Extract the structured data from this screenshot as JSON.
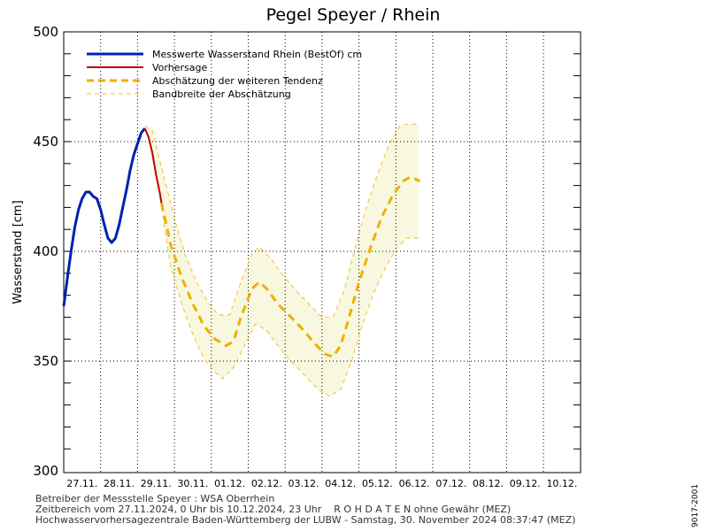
{
  "chart_data": {
    "type": "line",
    "title": "Pegel Speyer / Rhein",
    "ylabel": "Wasserstand [cm]",
    "ylim": [
      300,
      500
    ],
    "yticks": [
      300,
      350,
      400,
      450,
      500
    ],
    "x_range": [
      "27.11.2024 00:00",
      "10.12.2024 23:00"
    ],
    "day_labels": [
      "27.11.",
      "28.11.",
      "29.11.",
      "30.11.",
      "01.12.",
      "02.12.",
      "03.12.",
      "04.12.",
      "05.12.",
      "06.12.",
      "07.12.",
      "08.12.",
      "09.12.",
      "10.12."
    ],
    "grid": true,
    "legend_position": "top-left",
    "colors": {
      "measured": "#0020b0",
      "forecast": "#c00000",
      "tendency": "#f0b000",
      "band_fill": "#f8f8e0",
      "band_line": "#f0c030"
    },
    "legend": [
      {
        "label": "Messwerte Wasserstand Rhein (BestOf)  cm",
        "style": "measured"
      },
      {
        "label": "Vorhersage",
        "style": "forecast"
      },
      {
        "label": "Abschätzung der weiteren Tendenz",
        "style": "tendency"
      },
      {
        "label": "Bandbreite der Abschätzung",
        "style": "band"
      }
    ],
    "series": [
      {
        "name": "Messwerte Wasserstand Rhein (BestOf)  cm",
        "points": [
          [
            0.0,
            375
          ],
          [
            0.1,
            388
          ],
          [
            0.2,
            400
          ],
          [
            0.3,
            411
          ],
          [
            0.4,
            419
          ],
          [
            0.5,
            424
          ],
          [
            0.6,
            427
          ],
          [
            0.7,
            427
          ],
          [
            0.8,
            425
          ],
          [
            0.9,
            424
          ],
          [
            1.0,
            419
          ],
          [
            1.1,
            412
          ],
          [
            1.2,
            406
          ],
          [
            1.3,
            404
          ],
          [
            1.4,
            406
          ],
          [
            1.5,
            412
          ],
          [
            1.6,
            420
          ],
          [
            1.7,
            428
          ],
          [
            1.8,
            437
          ],
          [
            1.9,
            444
          ],
          [
            2.0,
            449
          ],
          [
            2.1,
            454
          ],
          [
            2.2,
            456
          ]
        ]
      },
      {
        "name": "Vorhersage",
        "points": [
          [
            2.2,
            456
          ],
          [
            2.3,
            452
          ],
          [
            2.4,
            445
          ],
          [
            2.5,
            435
          ],
          [
            2.6,
            427
          ],
          [
            2.65,
            422
          ]
        ]
      },
      {
        "name": "Abschätzung der weiteren Tendenz",
        "points": [
          [
            2.65,
            422
          ],
          [
            2.9,
            403
          ],
          [
            3.2,
            388
          ],
          [
            3.5,
            376
          ],
          [
            3.8,
            366
          ],
          [
            4.1,
            360
          ],
          [
            4.4,
            357
          ],
          [
            4.6,
            359
          ],
          [
            4.8,
            370
          ],
          [
            5.1,
            383
          ],
          [
            5.3,
            386
          ],
          [
            5.5,
            383
          ],
          [
            5.8,
            376
          ],
          [
            6.1,
            371
          ],
          [
            6.5,
            364
          ],
          [
            6.8,
            358
          ],
          [
            7.1,
            353
          ],
          [
            7.3,
            352
          ],
          [
            7.5,
            357
          ],
          [
            7.7,
            368
          ],
          [
            8.0,
            386
          ],
          [
            8.3,
            401
          ],
          [
            8.6,
            415
          ],
          [
            8.9,
            425
          ],
          [
            9.2,
            432
          ],
          [
            9.4,
            434
          ],
          [
            9.65,
            432
          ]
        ]
      },
      {
        "name": "Bandbreite der Abschätzung (oben)",
        "points": [
          [
            2.2,
            457
          ],
          [
            2.4,
            455
          ],
          [
            2.7,
            435
          ],
          [
            3.0,
            415
          ],
          [
            3.3,
            398
          ],
          [
            3.6,
            386
          ],
          [
            3.9,
            377
          ],
          [
            4.2,
            371
          ],
          [
            4.5,
            371
          ],
          [
            4.8,
            386
          ],
          [
            5.1,
            399
          ],
          [
            5.3,
            402
          ],
          [
            5.6,
            397
          ],
          [
            5.9,
            390
          ],
          [
            6.3,
            382
          ],
          [
            6.7,
            375
          ],
          [
            7.0,
            370
          ],
          [
            7.3,
            370
          ],
          [
            7.6,
            382
          ],
          [
            7.9,
            402
          ],
          [
            8.2,
            420
          ],
          [
            8.5,
            435
          ],
          [
            8.8,
            448
          ],
          [
            9.1,
            457
          ],
          [
            9.3,
            458
          ],
          [
            9.6,
            458
          ]
        ]
      },
      {
        "name": "Bandbreite der Abschätzung (unten)",
        "points": [
          [
            2.65,
            420
          ],
          [
            2.9,
            393
          ],
          [
            3.2,
            376
          ],
          [
            3.5,
            362
          ],
          [
            3.8,
            351
          ],
          [
            4.1,
            345
          ],
          [
            4.3,
            342
          ],
          [
            4.6,
            347
          ],
          [
            4.9,
            357
          ],
          [
            5.2,
            367
          ],
          [
            5.5,
            364
          ],
          [
            5.8,
            357
          ],
          [
            6.1,
            351
          ],
          [
            6.5,
            344
          ],
          [
            6.9,
            337
          ],
          [
            7.2,
            334
          ],
          [
            7.5,
            337
          ],
          [
            7.8,
            350
          ],
          [
            8.1,
            367
          ],
          [
            8.4,
            381
          ],
          [
            8.7,
            392
          ],
          [
            9.0,
            401
          ],
          [
            9.3,
            406
          ],
          [
            9.6,
            406
          ]
        ]
      }
    ]
  },
  "footer": {
    "line1": "Betreiber der Messstelle Speyer : WSA Oberrhein",
    "line2": "Zeitbereich vom 27.11.2024, 0 Uhr bis 10.12.2024, 23 Uhr    R O H D A T E N ohne Gewähr (MEZ)",
    "line3": "Hochwasservorhersagezentrale Baden-Württemberg der LUBW - Samstag, 30. November 2024 08:37:47 (MEZ)"
  },
  "side_code": "9017-2001"
}
